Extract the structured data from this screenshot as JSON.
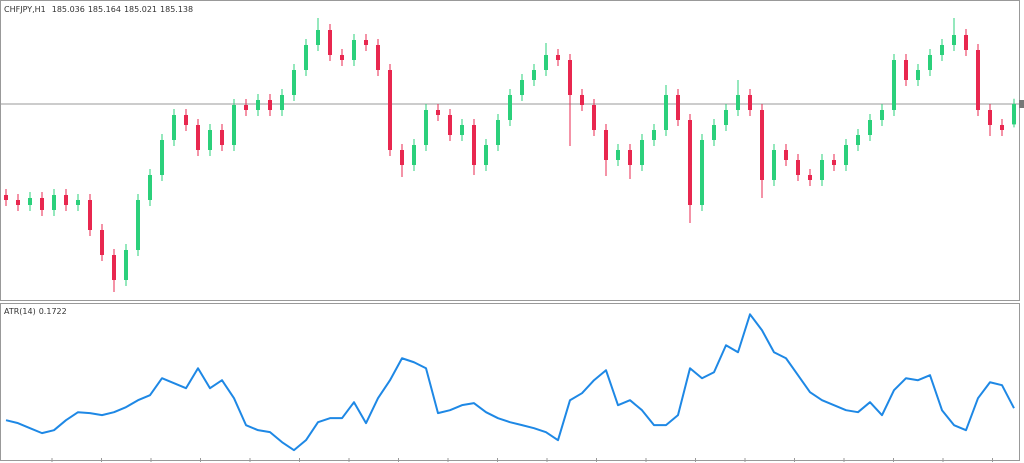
{
  "chart_data": [
    {
      "type": "candlestick",
      "title": "CHFJPY,H1",
      "open": [
        184.683,
        184.658,
        184.633,
        184.668,
        184.608,
        184.683,
        184.633,
        184.658,
        184.508,
        184.383,
        184.258,
        184.408,
        184.658,
        184.783,
        184.958,
        185.083,
        185.033,
        184.908,
        185.008,
        184.933,
        185.133,
        185.108,
        185.158,
        185.108,
        185.183,
        185.308,
        185.433,
        185.508,
        185.383,
        185.358,
        185.458,
        185.433,
        185.308,
        184.908,
        184.833,
        184.933,
        185.108,
        185.083,
        184.983,
        185.033,
        184.833,
        184.933,
        185.058,
        185.183,
        185.258,
        185.308,
        185.383,
        185.358,
        185.183,
        185.133,
        185.008,
        184.858,
        184.908,
        184.833,
        184.958,
        185.008,
        185.183,
        185.058,
        184.633,
        184.958,
        185.033,
        185.108,
        185.183,
        185.108,
        184.758,
        184.908,
        184.858,
        184.783,
        184.758,
        184.858,
        184.833,
        184.933,
        184.983,
        185.058,
        185.108,
        185.358,
        185.258,
        185.308,
        185.383,
        185.433,
        185.483,
        185.408,
        185.108,
        185.033,
        185.036
      ],
      "high": [
        184.713,
        184.688,
        184.698,
        184.698,
        184.713,
        184.713,
        184.688,
        184.688,
        184.538,
        184.413,
        184.438,
        184.688,
        184.813,
        184.988,
        185.113,
        185.113,
        185.063,
        185.038,
        185.038,
        185.163,
        185.163,
        185.188,
        185.188,
        185.213,
        185.338,
        185.463,
        185.568,
        185.538,
        185.413,
        185.488,
        185.488,
        185.463,
        185.338,
        184.938,
        184.963,
        185.138,
        185.138,
        185.113,
        185.063,
        185.063,
        184.963,
        185.088,
        185.213,
        185.288,
        185.338,
        185.443,
        185.413,
        185.388,
        185.213,
        185.163,
        185.038,
        184.938,
        184.938,
        184.988,
        185.038,
        185.233,
        185.213,
        185.088,
        184.988,
        185.063,
        185.138,
        185.258,
        185.213,
        185.138,
        184.938,
        184.938,
        184.888,
        184.813,
        184.888,
        184.888,
        184.963,
        185.013,
        185.088,
        185.138,
        185.388,
        185.388,
        185.338,
        185.413,
        185.463,
        185.568,
        185.513,
        185.438,
        185.138,
        185.063,
        185.164
      ],
      "low": [
        184.628,
        184.603,
        184.603,
        184.578,
        184.578,
        184.603,
        184.603,
        184.478,
        184.353,
        184.198,
        184.228,
        184.378,
        184.628,
        184.753,
        184.928,
        185.003,
        184.878,
        184.878,
        184.903,
        184.903,
        185.078,
        185.078,
        185.078,
        185.078,
        185.153,
        185.278,
        185.403,
        185.353,
        185.328,
        185.328,
        185.403,
        185.278,
        184.878,
        184.773,
        184.803,
        184.903,
        185.053,
        184.953,
        184.953,
        184.783,
        184.803,
        184.903,
        185.028,
        185.153,
        185.228,
        185.278,
        185.328,
        184.928,
        185.103,
        184.978,
        184.778,
        184.828,
        184.763,
        184.803,
        184.928,
        184.978,
        185.028,
        184.543,
        184.603,
        184.928,
        185.003,
        185.078,
        185.078,
        184.668,
        184.728,
        184.828,
        184.753,
        184.728,
        184.728,
        184.803,
        184.803,
        184.903,
        184.953,
        185.028,
        185.078,
        185.228,
        185.228,
        185.278,
        185.353,
        185.403,
        185.378,
        185.078,
        184.978,
        184.978,
        185.021
      ],
      "close": [
        184.658,
        184.633,
        184.668,
        184.608,
        184.683,
        184.633,
        184.658,
        184.508,
        184.383,
        184.258,
        184.408,
        184.658,
        184.783,
        184.958,
        185.083,
        185.033,
        184.908,
        185.008,
        184.933,
        185.133,
        185.108,
        185.158,
        185.108,
        185.183,
        185.308,
        185.433,
        185.508,
        185.383,
        185.358,
        185.458,
        185.433,
        185.308,
        184.908,
        184.833,
        184.933,
        185.108,
        185.083,
        184.983,
        185.033,
        184.833,
        184.933,
        185.058,
        185.183,
        185.258,
        185.308,
        185.383,
        185.358,
        185.183,
        185.133,
        185.008,
        184.858,
        184.908,
        184.833,
        184.958,
        185.008,
        185.183,
        185.058,
        184.633,
        184.958,
        185.033,
        185.108,
        185.183,
        185.108,
        184.758,
        184.908,
        184.858,
        184.783,
        184.758,
        184.858,
        184.833,
        184.933,
        184.983,
        185.058,
        185.108,
        185.358,
        185.258,
        185.308,
        185.383,
        185.433,
        185.483,
        185.408,
        185.108,
        185.033,
        185.008,
        185.138
      ],
      "up_color": "#2bd07b",
      "down_color": "#e8274f",
      "ylim": [
        184.158,
        185.648
      ],
      "price_line": true
    },
    {
      "type": "line",
      "series": [
        {
          "name": "ATR(14)",
          "color": "#1e88e5",
          "values": [
            0.1548,
            0.1505,
            0.1432,
            0.136,
            0.1403,
            0.1548,
            0.1664,
            0.165,
            0.1621,
            0.1664,
            0.1737,
            0.1838,
            0.1911,
            0.2157,
            0.2085,
            0.2012,
            0.2302,
            0.2012,
            0.2128,
            0.1867,
            0.1476,
            0.1403,
            0.1374,
            0.1229,
            0.1113,
            0.1258,
            0.1519,
            0.1577,
            0.1577,
            0.1809,
            0.1505,
            0.1867,
            0.2128,
            0.2447,
            0.2389,
            0.2302,
            0.165,
            0.1693,
            0.1766,
            0.1795,
            0.1664,
            0.1577,
            0.1519,
            0.1476,
            0.1432,
            0.1374,
            0.1258,
            0.1838,
            0.194,
            0.2128,
            0.2273,
            0.1766,
            0.1838,
            0.1693,
            0.1476,
            0.1476,
            0.1621,
            0.2302,
            0.2157,
            0.2244,
            0.2636,
            0.2534,
            0.3085,
            0.2853,
            0.2534,
            0.2447,
            0.2201,
            0.1954,
            0.1838,
            0.1766,
            0.1693,
            0.1664,
            0.1809,
            0.1621,
            0.1983,
            0.2157,
            0.2128,
            0.2201,
            0.1693,
            0.1476,
            0.1403,
            0.1867,
            0.2099,
            0.2056,
            0.1722
          ]
        }
      ],
      "ylim": [
        0.097,
        0.322
      ]
    }
  ]
}
